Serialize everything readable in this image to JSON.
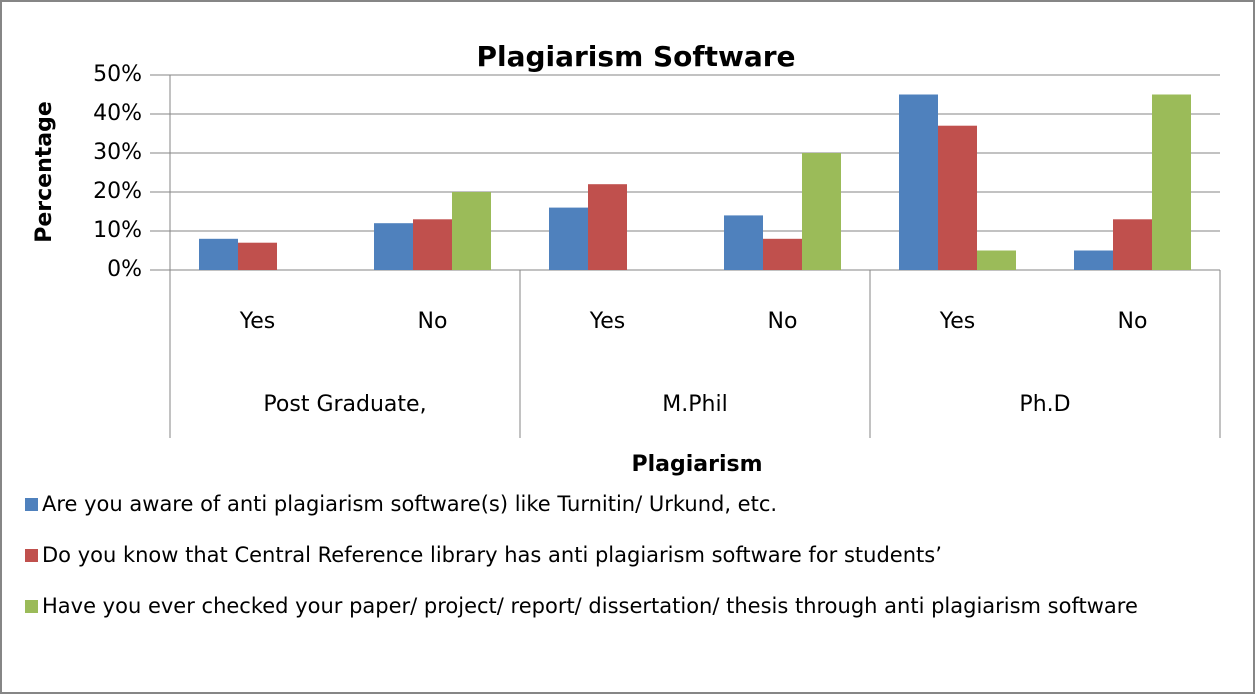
{
  "chart_data": {
    "type": "bar",
    "title": "Plagiarism Software",
    "categories": [
      "Yes",
      "No",
      "Yes",
      "No",
      "Yes",
      "No"
    ],
    "group_labels": [
      "Post Graduate,",
      "M.Phil",
      "Ph.D"
    ],
    "x_label": "Plagiarism",
    "y_label": "Percentage",
    "series": [
      {
        "name": "Are you aware of anti plagiarism software(s) like Turnitin/ Urkund, etc.",
        "color": "#4f81bd",
        "values": [
          8,
          12,
          16,
          14,
          45,
          5
        ]
      },
      {
        "name": "Do you know that Central Reference library has anti plagiarism software for students’",
        "color": "#c0504d",
        "values": [
          7,
          13,
          22,
          8,
          37,
          13
        ]
      },
      {
        "name": "Have you ever checked your paper/ project/ report/ dissertation/ thesis through anti plagiarism software",
        "color": "#9bbb59",
        "values": [
          0,
          20,
          0,
          30,
          5,
          45
        ]
      }
    ],
    "ylim": [
      0,
      50
    ],
    "yticks": [
      {
        "value": 0,
        "label": "0%"
      },
      {
        "value": 10,
        "label": "10%"
      },
      {
        "value": 20,
        "label": "20%"
      },
      {
        "value": 30,
        "label": "30%"
      },
      {
        "value": 40,
        "label": "40%"
      },
      {
        "value": 50,
        "label": "50%"
      }
    ],
    "grid": true,
    "legend": "bottom"
  }
}
